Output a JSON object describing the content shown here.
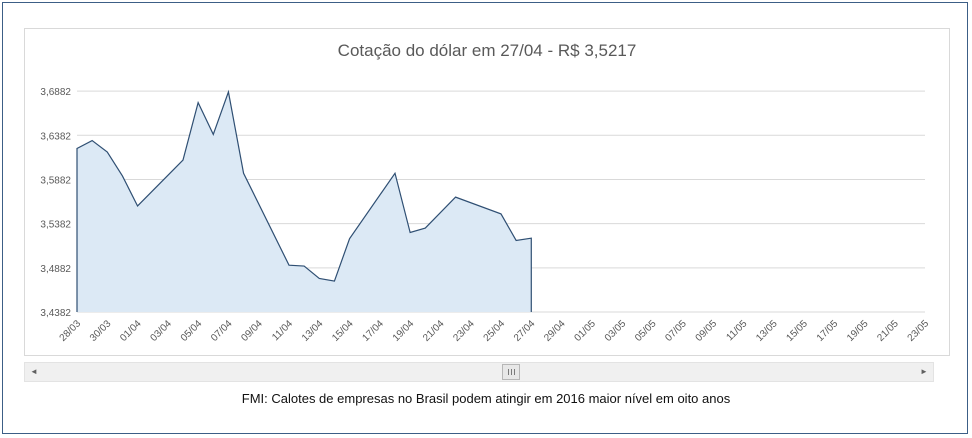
{
  "chart_data": {
    "type": "area",
    "title": "Cotação do dólar em 27/04 - R$ 3,5217",
    "xlabel": "",
    "ylabel": "",
    "ylim": [
      3.4382,
      3.7132
    ],
    "yticks": [
      "3,4382",
      "3,4882",
      "3,5382",
      "3,5882",
      "3,6382",
      "3,6882"
    ],
    "ytick_values": [
      3.4382,
      3.4882,
      3.5382,
      3.5882,
      3.6382,
      3.6882
    ],
    "xticks": [
      "28/03",
      "30/03",
      "01/04",
      "03/04",
      "05/04",
      "07/04",
      "09/04",
      "11/04",
      "13/04",
      "15/04",
      "17/04",
      "19/04",
      "21/04",
      "23/04",
      "25/04",
      "27/04",
      "29/04",
      "01/05",
      "03/05",
      "05/05",
      "07/05",
      "09/05",
      "11/05",
      "13/05",
      "15/05",
      "17/05",
      "19/05",
      "21/05",
      "23/05"
    ],
    "grid": true,
    "fill_color": "#dce9f5",
    "line_color": "#2f4f73",
    "series": [
      {
        "x": [
          "28/03",
          "29/03",
          "30/03",
          "31/03",
          "01/04",
          "04/04",
          "05/04",
          "06/04",
          "07/04",
          "08/04",
          "11/04",
          "12/04",
          "13/04",
          "14/04",
          "15/04",
          "18/04",
          "19/04",
          "20/04",
          "22/04",
          "25/04",
          "26/04",
          "27/04"
        ],
        "values": [
          3.6232,
          3.6322,
          3.6192,
          3.5922,
          3.5582,
          3.6102,
          3.6752,
          3.6392,
          3.6872,
          3.5952,
          3.4912,
          3.4902,
          3.4762,
          3.4732,
          3.5212,
          3.5952,
          3.5282,
          3.5332,
          3.5682,
          3.5492,
          3.5192,
          3.5217
        ]
      }
    ]
  },
  "footer": {
    "link_text": "FMI: Calotes de empresas no Brasil podem atingir em 2016 maior nível em oito anos"
  },
  "scrollbar": {
    "left_arrow": "◄",
    "right_arrow": "►"
  }
}
